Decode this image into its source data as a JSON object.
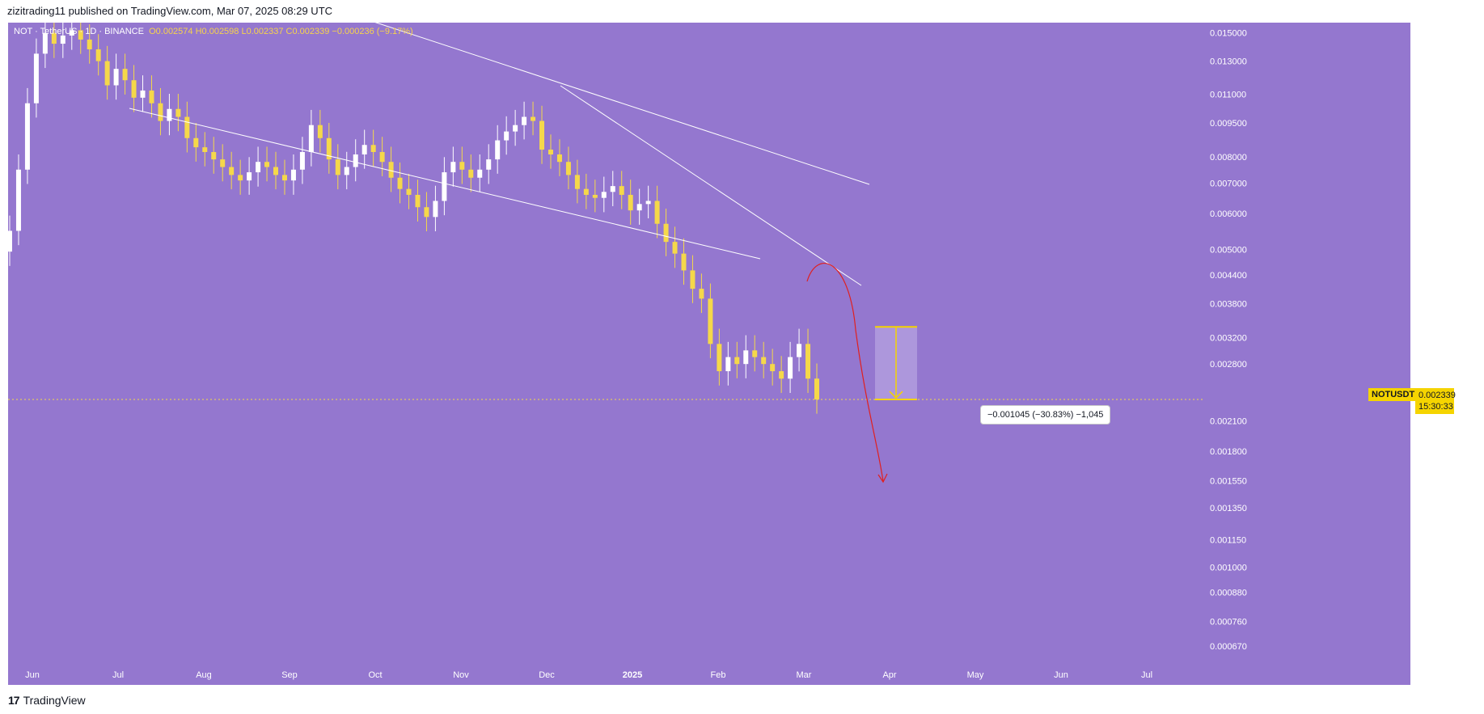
{
  "header": {
    "publish_line": "zizitrading11 published on TradingView.com, Mar 07, 2025 08:29 UTC"
  },
  "legend": {
    "symbol": "NOT · TetherUS · 1D · BINANCE",
    "ohlc": "O0.002574  H0.002598  L0.002337  C0.002339  −0.000236 (−9.17%)"
  },
  "price_tag": {
    "symbol_label": "NOTUSDT",
    "price": "0.002339",
    "countdown": "15:30:33"
  },
  "measure": {
    "text": "−0.001045 (−30.83%) −1,045"
  },
  "footer": {
    "brand": "TradingView",
    "logo_mark": "17"
  },
  "colors": {
    "background": "#9477cf",
    "candle_up": "#ffffff",
    "candle_down": "#f5d84a",
    "trendline": "#ffffff",
    "projection": "#e02020",
    "measure_zone": "#ad97dc",
    "price_tag": "#f5d400"
  },
  "chart_data": {
    "type": "candlestick",
    "scale": "log",
    "ylim": [
      0.00062,
      0.0158
    ],
    "y_ticks": [
      "0.015000",
      "0.013000",
      "0.011000",
      "0.009500",
      "0.008000",
      "0.007000",
      "0.006000",
      "0.005000",
      "0.004400",
      "0.003800",
      "0.003200",
      "0.002800",
      "0.002100",
      "0.001800",
      "0.001550",
      "0.001350",
      "0.001150",
      "0.001000",
      "0.000880",
      "0.000760",
      "0.000670"
    ],
    "x_ticks": [
      "Jun",
      "Jul",
      "Aug",
      "Sep",
      "Oct",
      "Nov",
      "Dec",
      "2025",
      "Feb",
      "Mar",
      "Apr",
      "May",
      "Jun",
      "Jul"
    ],
    "current_price": 0.002339,
    "close_series": [
      0.0055,
      0.0075,
      0.0105,
      0.0135,
      0.015,
      0.0142,
      0.0148,
      0.0152,
      0.0145,
      0.0138,
      0.013,
      0.0115,
      0.0125,
      0.0118,
      0.0108,
      0.0112,
      0.0105,
      0.0096,
      0.0102,
      0.0098,
      0.0088,
      0.0084,
      0.0082,
      0.0079,
      0.0076,
      0.0073,
      0.0071,
      0.0074,
      0.0078,
      0.0076,
      0.0073,
      0.0071,
      0.0075,
      0.0082,
      0.0094,
      0.0088,
      0.0079,
      0.0073,
      0.0076,
      0.0081,
      0.0085,
      0.0082,
      0.0078,
      0.0072,
      0.0068,
      0.0066,
      0.0062,
      0.0059,
      0.0064,
      0.0074,
      0.0078,
      0.0075,
      0.0072,
      0.0075,
      0.0079,
      0.0087,
      0.0091,
      0.0094,
      0.0098,
      0.0096,
      0.0083,
      0.0081,
      0.0078,
      0.0073,
      0.0068,
      0.0066,
      0.0065,
      0.0067,
      0.0069,
      0.0066,
      0.0061,
      0.0063,
      0.0064,
      0.0057,
      0.0052,
      0.0049,
      0.0045,
      0.0041,
      0.0039,
      0.0031,
      0.0027,
      0.0029,
      0.0028,
      0.003,
      0.0029,
      0.0028,
      0.0027,
      0.0026,
      0.0029,
      0.0031,
      0.0026,
      0.00234
    ],
    "annotations": {
      "measure_change": "−0.001045 (−30.83%) −1,045"
    }
  }
}
